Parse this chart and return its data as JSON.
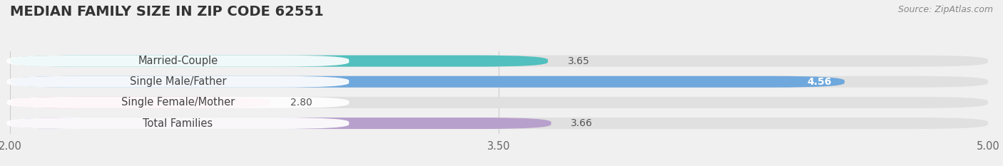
{
  "title": "MEDIAN FAMILY SIZE IN ZIP CODE 62551",
  "source": "Source: ZipAtlas.com",
  "categories": [
    "Married-Couple",
    "Single Male/Father",
    "Single Female/Mother",
    "Total Families"
  ],
  "values": [
    3.65,
    4.56,
    2.8,
    3.66
  ],
  "bar_colors": [
    "#52c0be",
    "#6fa8dc",
    "#f4a8c8",
    "#b8a0cc"
  ],
  "label_colors": [
    "#555555",
    "#ffffff",
    "#555555",
    "#555555"
  ],
  "xlim": [
    2.0,
    5.0
  ],
  "xticks": [
    2.0,
    3.5,
    5.0
  ],
  "background_color": "#f0f0f0",
  "bar_bg_color": "#e0e0e0",
  "title_fontsize": 14,
  "label_fontsize": 10.5,
  "value_fontsize": 10,
  "source_fontsize": 9
}
